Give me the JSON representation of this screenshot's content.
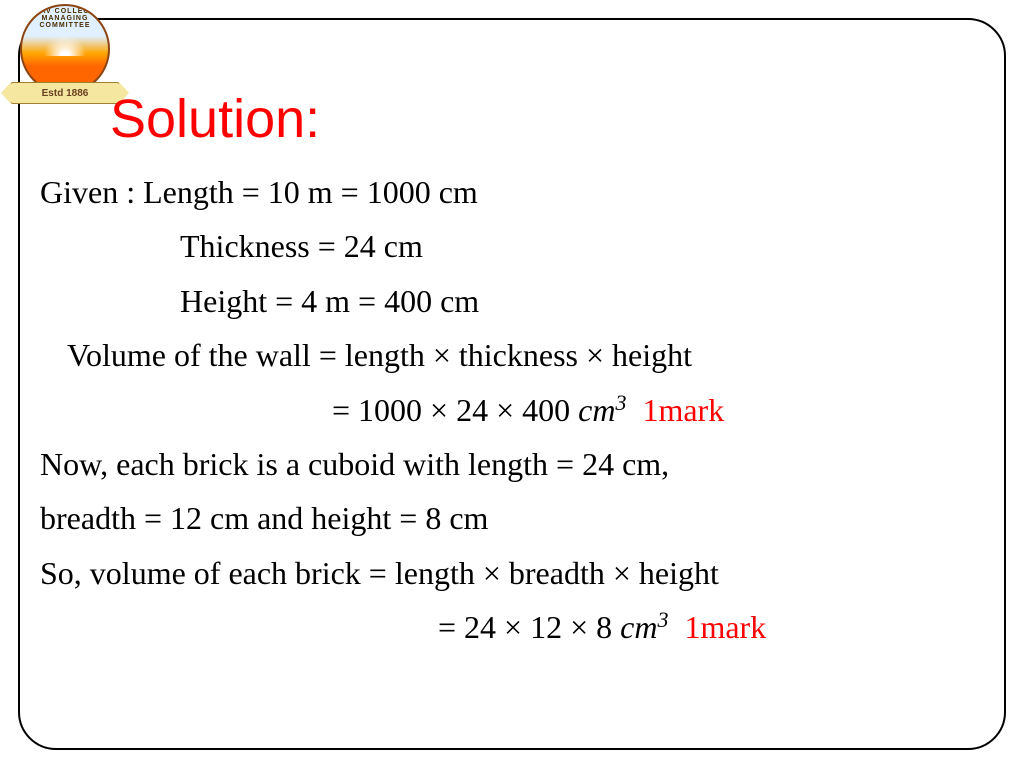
{
  "logo": {
    "arc_text": "DAV COLLEGE MANAGING COMMITTEE",
    "banner_text": "Estd 1886"
  },
  "title": "Solution:",
  "lines": {
    "l1": "Given  :  Length = 10 m = 1000 cm",
    "l2": "Thickness = 24 cm",
    "l3": "Height = 4 m = 400 cm",
    "l4": "Volume of the wall = length × thickness × height",
    "l5_prefix": "= 1000 × 24 × 400 ",
    "l5_unit": "cm",
    "l5_exp": "3",
    "l5_mark": "1mark",
    "l6": "Now, each brick is a cuboid with length = 24 cm,",
    "l7": "breadth = 12 cm and height = 8 cm",
    "l8": "So, volume of each brick = length × breadth × height",
    "l9_prefix": "= 24 × 12 × 8 ",
    "l9_unit": "cm",
    "l9_exp": "3",
    "l9_mark": "1mark"
  },
  "colors": {
    "title": "#ff0000",
    "body": "#000000",
    "mark": "#ff0000",
    "background": "#ffffff",
    "border": "#000000"
  },
  "typography": {
    "title_fontsize": 54,
    "body_fontsize": 32,
    "title_font": "Arial",
    "body_font": "Garamond"
  }
}
